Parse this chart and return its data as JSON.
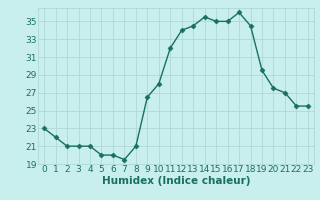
{
  "x": [
    0,
    1,
    2,
    3,
    4,
    5,
    6,
    7,
    8,
    9,
    10,
    11,
    12,
    13,
    14,
    15,
    16,
    17,
    18,
    19,
    20,
    21,
    22,
    23
  ],
  "y": [
    23,
    22,
    21,
    21,
    21,
    20,
    20,
    19.5,
    21,
    26.5,
    28,
    32,
    34,
    34.5,
    35.5,
    35,
    35,
    36,
    34.5,
    29.5,
    27.5,
    27,
    25.5,
    25.5
  ],
  "line_color": "#1a7060",
  "marker": "D",
  "marker_size": 2.5,
  "bg_color": "#c8eeed",
  "grid_color_major": "#b0d8d8",
  "grid_color_minor": "#c0e4e4",
  "xlabel": "Humidex (Indice chaleur)",
  "xlim": [
    -0.5,
    23.5
  ],
  "ylim": [
    19,
    36.5
  ],
  "yticks": [
    19,
    21,
    23,
    25,
    27,
    29,
    31,
    33,
    35
  ],
  "xticks": [
    0,
    1,
    2,
    3,
    4,
    5,
    6,
    7,
    8,
    9,
    10,
    11,
    12,
    13,
    14,
    15,
    16,
    17,
    18,
    19,
    20,
    21,
    22,
    23
  ],
  "tick_color": "#1a7060",
  "xlabel_fontsize": 7.5,
  "tick_fontsize": 6.5
}
